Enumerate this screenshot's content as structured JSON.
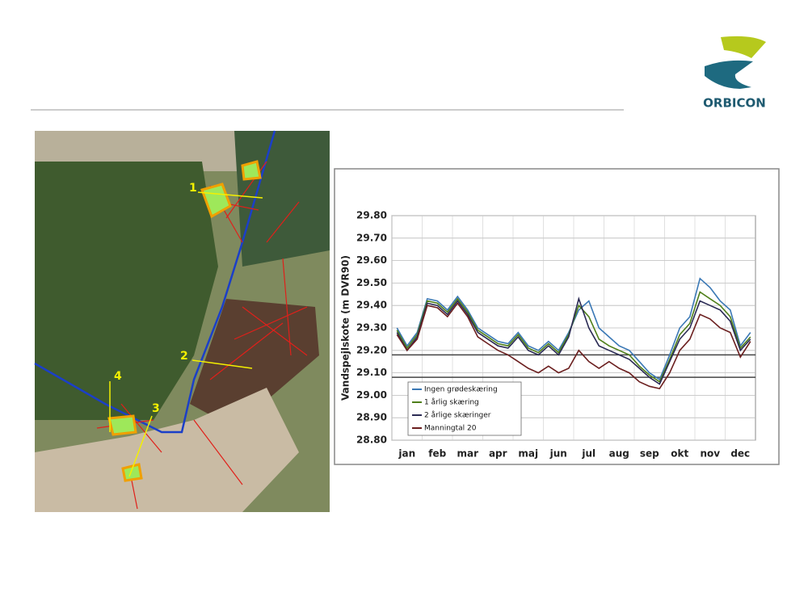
{
  "logo": {
    "text": "ORBICON"
  },
  "map": {
    "labels": [
      "1",
      "2",
      "3",
      "4"
    ]
  },
  "chart_data": {
    "type": "line",
    "y_label": "Vandspejlskote (m DVR90)",
    "categories": [
      "jan",
      null,
      null,
      "feb",
      null,
      null,
      "mar",
      null,
      null,
      "apr",
      null,
      null,
      "maj",
      null,
      null,
      "jun",
      null,
      null,
      "jul",
      null,
      null,
      "aug",
      null,
      null,
      "sep",
      null,
      null,
      "okt",
      null,
      null,
      "nov",
      null,
      null,
      "dec",
      null,
      null
    ],
    "ylim": [
      28.8,
      29.8
    ],
    "yticks": [
      {
        "value": 28.8,
        "label": "28.80"
      },
      {
        "value": 28.9,
        "label": "28.90"
      },
      {
        "value": 29.0,
        "label": "29.00"
      },
      {
        "value": 29.1,
        "label": "29.10"
      },
      {
        "value": 29.2,
        "label": "29.20"
      },
      {
        "value": 29.3,
        "label": "29.30"
      },
      {
        "value": 29.4,
        "label": "29.40"
      },
      {
        "value": 29.5,
        "label": "29.50"
      },
      {
        "value": 29.6,
        "label": "29.60"
      },
      {
        "value": 29.7,
        "label": "29.70"
      },
      {
        "value": 29.8,
        "label": "29.80"
      }
    ],
    "grid": true,
    "reference_lines": [
      29.18,
      29.08
    ],
    "legend": "bottom-left",
    "series": [
      {
        "name": "Ingen grødeskæring",
        "color": "#3a78b5",
        "values": [
          29.3,
          29.22,
          29.28,
          29.43,
          29.42,
          29.38,
          29.44,
          29.38,
          29.3,
          29.27,
          29.24,
          29.23,
          29.28,
          29.22,
          29.2,
          29.24,
          29.2,
          29.28,
          29.38,
          29.42,
          29.3,
          29.26,
          29.22,
          29.2,
          29.15,
          29.1,
          29.07,
          29.18,
          29.3,
          29.35,
          29.52,
          29.48,
          29.42,
          29.38,
          29.22,
          29.28
        ]
      },
      {
        "name": "1 årlig skæring",
        "color": "#4f7f1a",
        "values": [
          29.29,
          29.21,
          29.27,
          29.42,
          29.41,
          29.37,
          29.43,
          29.37,
          29.29,
          29.26,
          29.23,
          29.22,
          29.27,
          29.21,
          29.19,
          29.23,
          29.19,
          29.27,
          29.4,
          29.35,
          29.25,
          29.22,
          29.2,
          29.18,
          29.13,
          29.09,
          29.06,
          29.16,
          29.27,
          29.32,
          29.46,
          29.43,
          29.4,
          29.35,
          29.21,
          29.26
        ]
      },
      {
        "name": "2 årlige skæringer",
        "color": "#2b2b55",
        "values": [
          29.28,
          29.2,
          29.26,
          29.41,
          29.4,
          29.36,
          29.42,
          29.36,
          29.28,
          29.25,
          29.22,
          29.21,
          29.26,
          29.2,
          29.18,
          29.22,
          29.18,
          29.26,
          29.43,
          29.3,
          29.22,
          29.2,
          29.18,
          29.16,
          29.12,
          29.08,
          29.05,
          29.15,
          29.25,
          29.3,
          29.42,
          29.4,
          29.38,
          29.33,
          29.2,
          29.25
        ]
      },
      {
        "name": "Manningtal 20",
        "color": "#6b1f1f",
        "values": [
          29.27,
          29.2,
          29.25,
          29.4,
          29.39,
          29.35,
          29.41,
          29.35,
          29.26,
          29.23,
          29.2,
          29.18,
          29.15,
          29.12,
          29.1,
          29.13,
          29.1,
          29.12,
          29.2,
          29.15,
          29.12,
          29.15,
          29.12,
          29.1,
          29.06,
          29.04,
          29.03,
          29.1,
          29.2,
          29.25,
          29.36,
          29.34,
          29.3,
          29.28,
          29.17,
          29.24
        ]
      }
    ]
  }
}
